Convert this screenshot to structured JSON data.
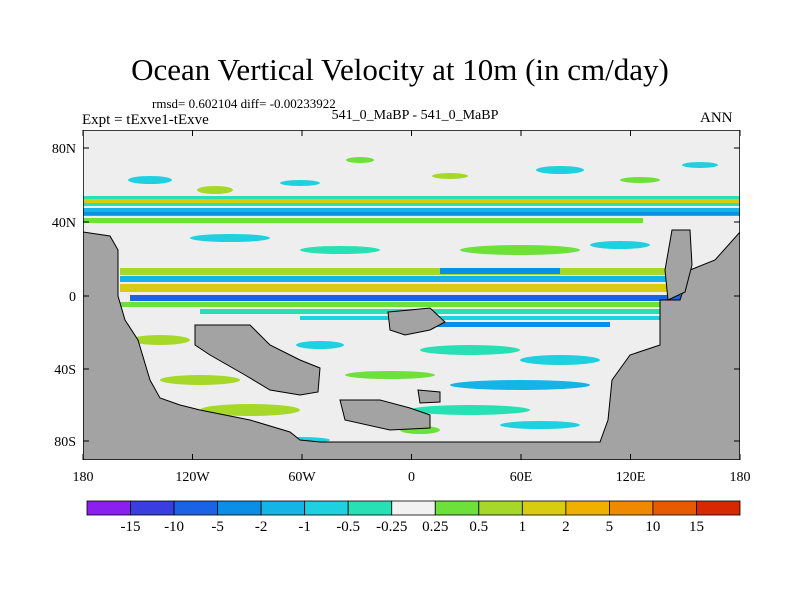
{
  "title": "Ocean Vertical Velocity at 10m (in cm/day)",
  "stats_line": "rmsd= 0.602104 diff= -0.00233922",
  "experiment_label": "Expt = tExve1-tExve",
  "center_label": "541_0_MaBP - 541_0_MaBP",
  "season_label": "ANN",
  "y_ticks": [
    "80N",
    "40N",
    "0",
    "40S",
    "80S"
  ],
  "x_ticks": [
    "180",
    "120W",
    "60W",
    "0",
    "60E",
    "120E",
    "180"
  ],
  "colorbar": {
    "labels": [
      "-15",
      "-10",
      "-5",
      "-2",
      "-1",
      "-0.5",
      "-0.25",
      "0.25",
      "0.5",
      "1",
      "2",
      "5",
      "10",
      "15"
    ],
    "colors": [
      "#8b1ff0",
      "#3a3ee0",
      "#1a63e6",
      "#0a8ee6",
      "#14b4e6",
      "#1fd0e0",
      "#27e0b4",
      "#f2f2f2",
      "#6ee03a",
      "#a6d82a",
      "#d8cc10",
      "#efb000",
      "#ef8a00",
      "#e85a00",
      "#d82800"
    ]
  },
  "colors": {
    "land": "#a3a3a3",
    "ocean_neutral": "#eeeeee"
  }
}
